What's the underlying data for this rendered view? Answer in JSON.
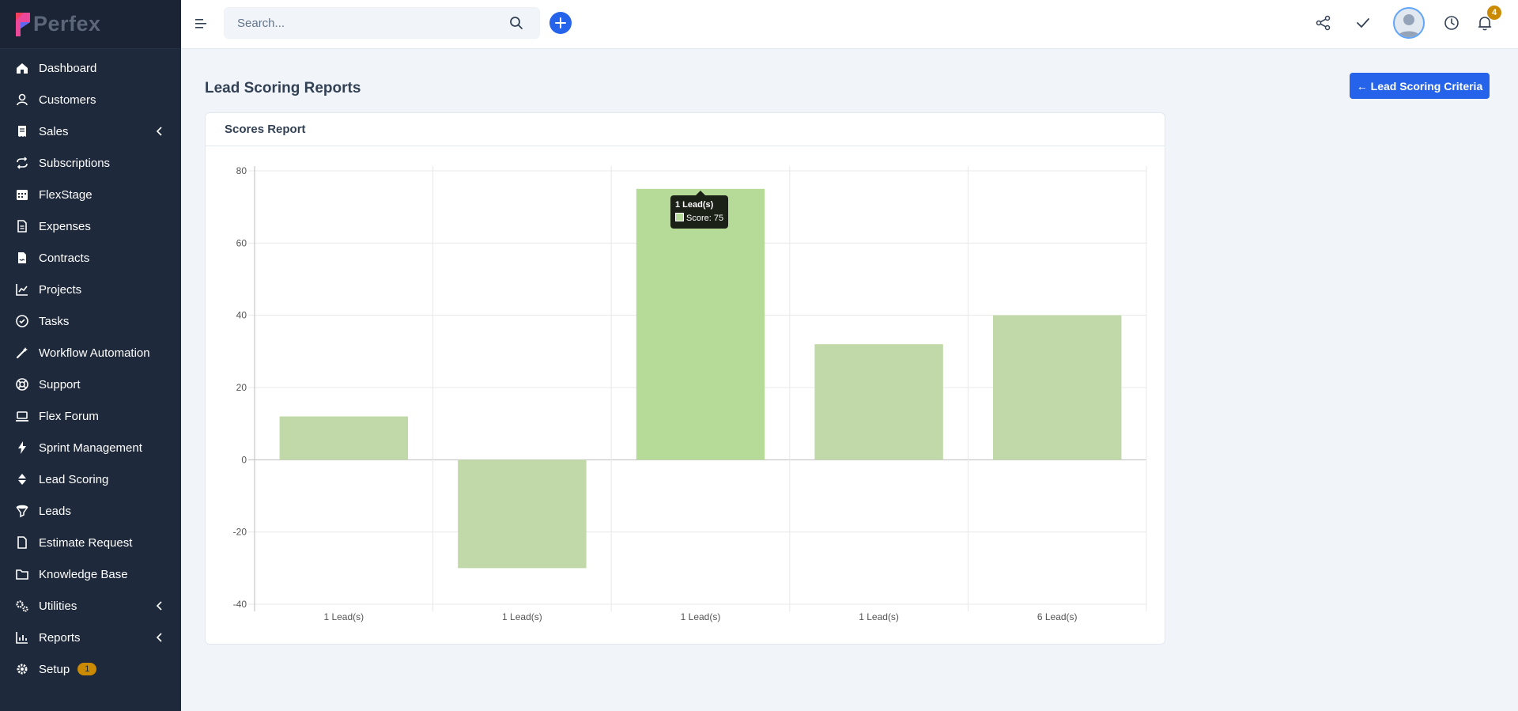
{
  "brand": {
    "name": "Perfex"
  },
  "sidebar": {
    "items": [
      {
        "label": "Dashboard",
        "icon": "home-icon"
      },
      {
        "label": "Customers",
        "icon": "user-icon"
      },
      {
        "label": "Sales",
        "icon": "receipt-icon",
        "submenu": true
      },
      {
        "label": "Subscriptions",
        "icon": "repeat-icon"
      },
      {
        "label": "FlexStage",
        "icon": "calendar-icon"
      },
      {
        "label": "Expenses",
        "icon": "document-icon"
      },
      {
        "label": "Contracts",
        "icon": "contract-icon"
      },
      {
        "label": "Projects",
        "icon": "chart-line-icon"
      },
      {
        "label": "Tasks",
        "icon": "check-circle-icon"
      },
      {
        "label": "Workflow Automation",
        "icon": "magic-wand-icon"
      },
      {
        "label": "Support",
        "icon": "lifebuoy-icon"
      },
      {
        "label": "Flex Forum",
        "icon": "laptop-icon"
      },
      {
        "label": "Sprint Management",
        "icon": "bolt-icon"
      },
      {
        "label": "Lead Scoring",
        "icon": "sort-icon"
      },
      {
        "label": "Leads",
        "icon": "funnel-icon"
      },
      {
        "label": "Estimate Request",
        "icon": "file-icon"
      },
      {
        "label": "Knowledge Base",
        "icon": "folder-icon"
      },
      {
        "label": "Utilities",
        "icon": "cogs-icon",
        "submenu": true
      },
      {
        "label": "Reports",
        "icon": "bar-chart-icon",
        "submenu": true
      },
      {
        "label": "Setup",
        "icon": "gear-icon",
        "badge": "1"
      }
    ]
  },
  "topbar": {
    "search_placeholder": "Search...",
    "notification_count": "4"
  },
  "page": {
    "title": "Lead Scoring Reports",
    "criteria_button": "← Lead Scoring Criteria",
    "panel_title": "Scores Report"
  },
  "colors": {
    "accent": "#2563eb",
    "sidebar_bg": "#1e293b",
    "bar_fill": "#c1d9a9",
    "bar_fill_active": "#b6da98",
    "badge": "#ca8a04"
  },
  "chart_data": {
    "type": "bar",
    "categories": [
      "1 Lead(s)",
      "1 Lead(s)",
      "1 Lead(s)",
      "1 Lead(s)",
      "6 Lead(s)"
    ],
    "series": [
      {
        "name": "Score",
        "values": [
          12,
          -30,
          75,
          32,
          40
        ]
      }
    ],
    "ylim": [
      -40,
      80
    ],
    "yticks": [
      80,
      60,
      40,
      20,
      0,
      -20,
      -40
    ],
    "grid": true,
    "tooltip": {
      "category_index": 2,
      "title": "1 Lead(s)",
      "label": "Score: 75"
    }
  }
}
